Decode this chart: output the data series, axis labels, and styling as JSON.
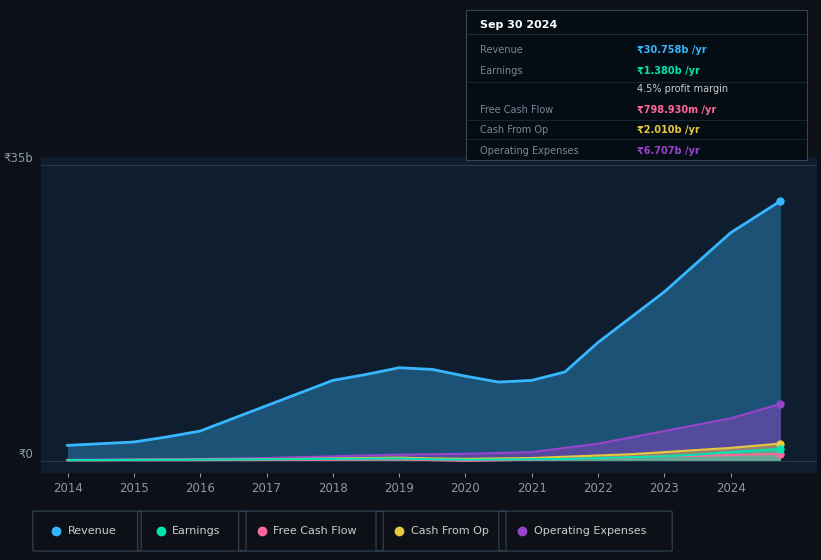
{
  "bg_color": "#0d1117",
  "plot_bg_color": "#0e1e2e",
  "years": [
    2014,
    2014.5,
    2015,
    2015.5,
    2016,
    2016.5,
    2017,
    2017.5,
    2018,
    2018.5,
    2019,
    2019.5,
    2020,
    2020.5,
    2021,
    2021.5,
    2022,
    2022.5,
    2023,
    2023.5,
    2024,
    2024.75
  ],
  "revenue": [
    1.8,
    2.0,
    2.2,
    2.8,
    3.5,
    5.0,
    6.5,
    8.0,
    9.5,
    10.2,
    11.0,
    10.8,
    10.0,
    9.3,
    9.5,
    10.5,
    14.0,
    17.0,
    20.0,
    23.5,
    27.0,
    30.758
  ],
  "earnings": [
    0.05,
    0.06,
    0.08,
    0.09,
    0.1,
    0.12,
    0.14,
    0.17,
    0.2,
    0.22,
    0.25,
    0.15,
    0.1,
    0.12,
    0.15,
    0.2,
    0.3,
    0.4,
    0.5,
    0.7,
    1.0,
    1.38
  ],
  "free_cash_flow": [
    0.02,
    0.02,
    0.03,
    0.03,
    0.04,
    0.05,
    0.06,
    0.08,
    0.1,
    0.12,
    0.15,
    0.05,
    -0.05,
    0.02,
    0.1,
    0.2,
    0.3,
    0.4,
    0.5,
    0.55,
    0.65,
    0.79893
  ],
  "cash_from_op": [
    0.05,
    0.06,
    0.08,
    0.09,
    0.1,
    0.12,
    0.15,
    0.2,
    0.25,
    0.3,
    0.35,
    0.25,
    0.2,
    0.25,
    0.3,
    0.45,
    0.6,
    0.75,
    1.0,
    1.25,
    1.5,
    2.01
  ],
  "operating_expenses": [
    0.1,
    0.12,
    0.15,
    0.18,
    0.2,
    0.25,
    0.3,
    0.4,
    0.5,
    0.6,
    0.7,
    0.75,
    0.8,
    0.9,
    1.0,
    1.5,
    2.0,
    2.75,
    3.5,
    4.25,
    5.0,
    6.707
  ],
  "revenue_color": "#38b6ff",
  "earnings_color": "#00e5b0",
  "fcf_color": "#ff6699",
  "cashop_color": "#e8c840",
  "opex_color": "#9944cc",
  "ylabel_35b": "₹35b",
  "ylabel_0": "₹0",
  "tooltip_title": "Sep 30 2024",
  "tooltip_rows": [
    {
      "label": "Revenue",
      "value": "₹30.758b /yr",
      "color": "#38b6ff",
      "bold": true
    },
    {
      "label": "Earnings",
      "value": "₹1.380b /yr",
      "color": "#00e5b0",
      "bold": true
    },
    {
      "label": "",
      "value": "4.5% profit margin",
      "color": "#cccccc",
      "bold": false
    },
    {
      "label": "Free Cash Flow",
      "value": "₹798.930m /yr",
      "color": "#ff6699",
      "bold": true
    },
    {
      "label": "Cash From Op",
      "value": "₹2.010b /yr",
      "color": "#e8c840",
      "bold": true
    },
    {
      "label": "Operating Expenses",
      "value": "₹6.707b /yr",
      "color": "#9944cc",
      "bold": true
    }
  ],
  "legend_items": [
    {
      "label": "Revenue",
      "color": "#38b6ff"
    },
    {
      "label": "Earnings",
      "color": "#00e5b0"
    },
    {
      "label": "Free Cash Flow",
      "color": "#ff6699"
    },
    {
      "label": "Cash From Op",
      "color": "#e8c840"
    },
    {
      "label": "Operating Expenses",
      "color": "#9944cc"
    }
  ],
  "ylim": [
    -1.5,
    36
  ],
  "xlim": [
    2013.6,
    2025.3
  ],
  "xticks": [
    2014,
    2015,
    2016,
    2017,
    2018,
    2019,
    2020,
    2021,
    2022,
    2023,
    2024
  ]
}
